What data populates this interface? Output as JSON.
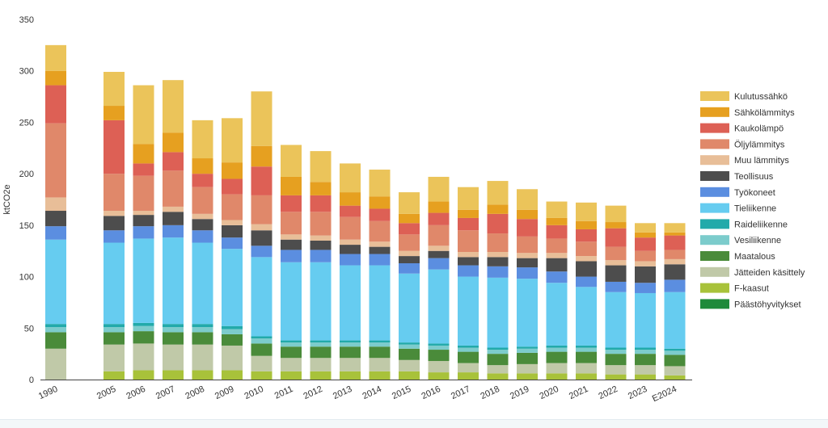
{
  "chart_data": {
    "type": "bar",
    "stacked": true,
    "ylabel": "ktCO2e",
    "ylim": [
      0,
      350
    ],
    "yticks": [
      0,
      50,
      100,
      150,
      200,
      250,
      300,
      350
    ],
    "grid": false,
    "legend_position": "right",
    "categories": [
      "1990",
      "2005",
      "2006",
      "2007",
      "2008",
      "2009",
      "2010",
      "2011",
      "2012",
      "2013",
      "2014",
      "2015",
      "2016",
      "2017",
      "2018",
      "2019",
      "2020",
      "2021",
      "2022",
      "2023",
      "E2024"
    ],
    "series": [
      {
        "name": "Päästöhyvitykset",
        "color": "#1e8a3a",
        "values": [
          0,
          0,
          0,
          0,
          0,
          0,
          0,
          0,
          0,
          0,
          0,
          0,
          0,
          0,
          0,
          0,
          0,
          0,
          0,
          0,
          0
        ]
      },
      {
        "name": "F-kaasut",
        "color": "#a8c23a",
        "values": [
          0,
          8,
          9,
          9,
          9,
          9,
          8,
          8,
          8,
          8,
          8,
          8,
          7,
          7,
          6,
          6,
          6,
          6,
          5,
          5,
          4
        ]
      },
      {
        "name": "Jätteiden käsittely",
        "color": "#c0c9a8",
        "values": [
          30,
          26,
          26,
          25,
          25,
          24,
          15,
          13,
          13,
          13,
          13,
          11,
          11,
          9,
          8,
          9,
          10,
          10,
          9,
          9,
          9
        ]
      },
      {
        "name": "Maatalous",
        "color": "#4a8b3a",
        "values": [
          16,
          12,
          12,
          12,
          12,
          11,
          12,
          11,
          11,
          11,
          11,
          11,
          11,
          11,
          11,
          11,
          11,
          11,
          11,
          11,
          11
        ]
      },
      {
        "name": "Vesiliikenne",
        "color": "#7ccccc",
        "values": [
          5,
          5,
          5,
          5,
          5,
          5,
          5,
          4,
          4,
          4,
          4,
          4,
          4,
          4,
          4,
          4,
          4,
          4,
          4,
          4,
          4
        ]
      },
      {
        "name": "Raideliikenne",
        "color": "#22aaaa",
        "values": [
          3,
          3,
          3,
          3,
          3,
          3,
          2,
          2,
          2,
          2,
          2,
          2,
          2,
          2,
          2,
          2,
          2,
          2,
          2,
          2,
          2
        ]
      },
      {
        "name": "Tieliikenne",
        "color": "#66ccf0",
        "values": [
          82,
          79,
          82,
          84,
          79,
          75,
          77,
          76,
          76,
          73,
          73,
          67,
          72,
          67,
          68,
          66,
          61,
          57,
          54,
          53,
          55
        ]
      },
      {
        "name": "Työkoneet",
        "color": "#5b8ee0",
        "values": [
          13,
          12,
          12,
          12,
          12,
          11,
          11,
          12,
          12,
          11,
          11,
          10,
          11,
          11,
          11,
          11,
          11,
          10,
          10,
          10,
          12
        ]
      },
      {
        "name": "Teollisuus",
        "color": "#4d4d4d",
        "values": [
          15,
          14,
          11,
          13,
          11,
          12,
          15,
          10,
          9,
          9,
          7,
          7,
          7,
          8,
          9,
          9,
          13,
          15,
          16,
          16,
          15
        ]
      },
      {
        "name": "Muu lämmitys",
        "color": "#e8be98",
        "values": [
          13,
          5,
          4,
          5,
          5,
          5,
          6,
          5,
          5,
          5,
          5,
          5,
          5,
          5,
          5,
          5,
          5,
          5,
          5,
          5,
          5
        ]
      },
      {
        "name": "Öljylämmitys",
        "color": "#e0886a",
        "values": [
          72,
          36,
          34,
          35,
          26,
          25,
          28,
          22,
          23,
          22,
          20,
          16,
          20,
          21,
          18,
          16,
          14,
          14,
          13,
          10,
          9
        ]
      },
      {
        "name": "Kaukolämpö",
        "color": "#dd6055",
        "values": [
          37,
          52,
          12,
          18,
          13,
          15,
          28,
          16,
          16,
          11,
          12,
          11,
          12,
          12,
          19,
          17,
          13,
          12,
          18,
          13,
          14
        ]
      },
      {
        "name": "Sähkölämmitys",
        "color": "#e6a020",
        "values": [
          14,
          14,
          19,
          19,
          15,
          16,
          20,
          18,
          13,
          13,
          12,
          9,
          11,
          8,
          9,
          9,
          7,
          8,
          6,
          5,
          3
        ]
      },
      {
        "name": "Kulutussähkö",
        "color": "#ebc45a",
        "values": [
          25,
          33,
          57,
          51,
          37,
          43,
          53,
          31,
          30,
          28,
          26,
          21,
          24,
          22,
          23,
          20,
          16,
          18,
          16,
          9,
          9
        ]
      }
    ]
  }
}
